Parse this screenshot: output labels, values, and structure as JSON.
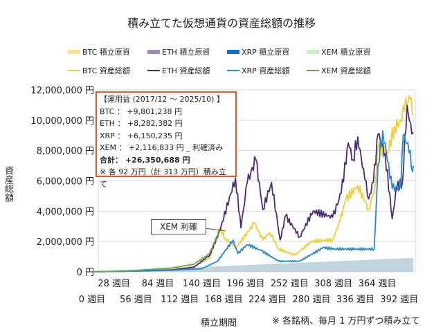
{
  "chart_data": {
    "type": "line",
    "title": "積み立てた仮想通貨の資産総額の推移",
    "xlabel": "積立期間",
    "ylabel": "資産総額",
    "ylim": [
      0,
      12000000
    ],
    "yticks": [
      "0 円",
      "2,000,000 円",
      "4,000,000 円",
      "6,000,000 円",
      "8,000,000 円",
      "10,000,000 円",
      "12,000,000 円"
    ],
    "xticks": [
      "0 週目",
      "28 週目",
      "56 週目",
      "84 週目",
      "112 週目",
      "140 週目",
      "168 週目",
      "196 週目",
      "224 週目",
      "252 週目",
      "280 週目",
      "308 週目",
      "336 週目",
      "364 週目",
      "392 週目"
    ],
    "grid": true,
    "legend_position": "top",
    "legend": [
      {
        "label": "BTC  積立原資",
        "type": "area",
        "color": "#ffe38a"
      },
      {
        "label": "ETH  積立原資",
        "type": "area",
        "color": "#9e86b8"
      },
      {
        "label": "XRP  積立原資",
        "type": "area",
        "color": "#0b72c8"
      },
      {
        "label": "XEM  積立原資",
        "type": "area",
        "color": "#c6f0c0"
      },
      {
        "label": "BTC  資産総額",
        "type": "line",
        "color": "#f7cc2e"
      },
      {
        "label": "ETH  資産総額",
        "type": "line",
        "color": "#4b2a7a"
      },
      {
        "label": "XRP  資産総額",
        "type": "line",
        "color": "#1f8ad0"
      },
      {
        "label": "XEM  資産総額",
        "type": "line",
        "color": "#6aa84f"
      }
    ],
    "invested": {
      "color": "#b7cdd8",
      "points": [
        [
          0,
          0
        ],
        [
          410,
          920000
        ]
      ]
    },
    "series": [
      {
        "name": "BTC  資産総額",
        "color": "#f7cc2e",
        "points": [
          [
            0,
            0
          ],
          [
            50,
            60000
          ],
          [
            100,
            150000
          ],
          [
            130,
            350000
          ],
          [
            150,
            900000
          ],
          [
            163,
            2900000
          ],
          [
            170,
            2200000
          ],
          [
            184,
            1600000
          ],
          [
            207,
            3200000
          ],
          [
            218,
            2100000
          ],
          [
            227,
            2600000
          ],
          [
            238,
            1500000
          ],
          [
            259,
            1100000
          ],
          [
            280,
            2000000
          ],
          [
            307,
            2100000
          ],
          [
            316,
            3300000
          ],
          [
            324,
            4800000
          ],
          [
            339,
            5700000
          ],
          [
            353,
            4100000
          ],
          [
            361,
            5600000
          ],
          [
            365,
            8200000
          ],
          [
            377,
            7800000
          ],
          [
            386,
            9600000
          ],
          [
            395,
            9900000
          ],
          [
            397,
            11000000
          ],
          [
            406,
            11400000
          ],
          [
            410,
            10400000
          ]
        ]
      },
      {
        "name": "ETH  資産総額",
        "color": "#4b2a7a",
        "points": [
          [
            0,
            0
          ],
          [
            50,
            50000
          ],
          [
            100,
            120000
          ],
          [
            130,
            300000
          ],
          [
            150,
            1100000
          ],
          [
            163,
            2700000
          ],
          [
            183,
            6200000
          ],
          [
            190,
            2900000
          ],
          [
            198,
            5900000
          ],
          [
            209,
            7400000
          ],
          [
            218,
            4100000
          ],
          [
            229,
            5900000
          ],
          [
            240,
            2100000
          ],
          [
            247,
            3700000
          ],
          [
            265,
            2300000
          ],
          [
            282,
            4000000
          ],
          [
            307,
            3600000
          ],
          [
            318,
            5200000
          ],
          [
            327,
            8500000
          ],
          [
            333,
            7400000
          ],
          [
            339,
            8900000
          ],
          [
            348,
            6100000
          ],
          [
            353,
            4800000
          ],
          [
            359,
            5900000
          ],
          [
            365,
            9100000
          ],
          [
            374,
            7800000
          ],
          [
            383,
            3500000
          ],
          [
            389,
            5600000
          ],
          [
            396,
            5900000
          ],
          [
            402,
            11000000
          ],
          [
            408,
            9100000
          ],
          [
            410,
            9200000
          ]
        ]
      },
      {
        "name": "XRP  資産総額",
        "color": "#1f8ad0",
        "points": [
          [
            0,
            0
          ],
          [
            50,
            40000
          ],
          [
            100,
            100000
          ],
          [
            140,
            200000
          ],
          [
            160,
            700000
          ],
          [
            180,
            2100000
          ],
          [
            186,
            1200000
          ],
          [
            198,
            1800000
          ],
          [
            216,
            1400000
          ],
          [
            238,
            700000
          ],
          [
            265,
            700000
          ],
          [
            295,
            1600000
          ],
          [
            310,
            1500000
          ],
          [
            360,
            1500000
          ],
          [
            365,
            7100000
          ],
          [
            371,
            9300000
          ],
          [
            383,
            5500000
          ],
          [
            394,
            5600000
          ],
          [
            397,
            9000000
          ],
          [
            406,
            8000000
          ],
          [
            409,
            6600000
          ],
          [
            410,
            7000000
          ]
        ]
      },
      {
        "name": "XEM  資産総額",
        "color": "#6aa84f",
        "points": [
          [
            0,
            0
          ],
          [
            50,
            80000
          ],
          [
            100,
            250000
          ],
          [
            130,
            500000
          ],
          [
            150,
            1200000
          ],
          [
            163,
            2700000
          ]
        ]
      }
    ],
    "annotation": "XEM 利確"
  },
  "summary": {
    "header": "【運用益 (2017/12 ～ 2025/10) 】",
    "btc": "BTC ： +9,801,238 円",
    "eth": "ETH ： +8,282,382 円",
    "xrp": "XRP ： +6,150,235 円",
    "xem": "XEM ： +2,116,833 円 _ 利確済み",
    "total": "合計： +26,350,688 円",
    "note": "※ 各 92 万円（計 313 万円）積み立て"
  },
  "footnote": "※ 各銘柄、毎月 1 万円ずつ積み立て"
}
